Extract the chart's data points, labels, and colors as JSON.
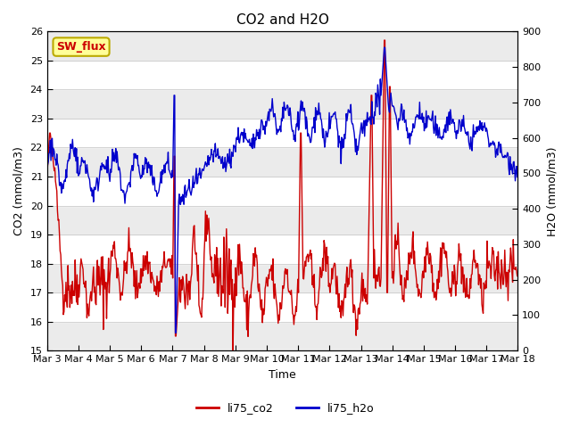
{
  "title": "CO2 and H2O",
  "xlabel": "Time",
  "ylabel_left": "CO2 (mmol/m3)",
  "ylabel_right": "H2O (mmol/m3)",
  "ylim_left": [
    15.0,
    26.0
  ],
  "ylim_right": [
    0,
    900
  ],
  "yticks_left": [
    15.0,
    16.0,
    17.0,
    18.0,
    19.0,
    20.0,
    21.0,
    22.0,
    23.0,
    24.0,
    25.0,
    26.0
  ],
  "yticks_right": [
    0,
    100,
    200,
    300,
    400,
    500,
    600,
    700,
    800,
    900
  ],
  "xtick_labels": [
    "Mar 3",
    "Mar 4",
    "Mar 5",
    "Mar 6",
    "Mar 7",
    "Mar 8",
    "Mar 9",
    "Mar 10",
    "Mar 11",
    "Mar 12",
    "Mar 13",
    "Mar 14",
    "Mar 15",
    "Mar 16",
    "Mar 17",
    "Mar 18"
  ],
  "color_co2": "#cc0000",
  "color_h2o": "#0000cc",
  "line_width": 1.0,
  "legend_labels": [
    "li75_co2",
    "li75_h2o"
  ],
  "sw_flux_label": "SW_flux",
  "sw_flux_bg": "#ffff99",
  "sw_flux_border": "#bbaa00",
  "sw_flux_text_color": "#cc0000",
  "background_color": "#ffffff",
  "band_color_light": "#ebebeb",
  "band_color_white": "#ffffff",
  "title_fontsize": 11,
  "axis_label_fontsize": 9,
  "tick_fontsize": 8,
  "legend_fontsize": 9
}
